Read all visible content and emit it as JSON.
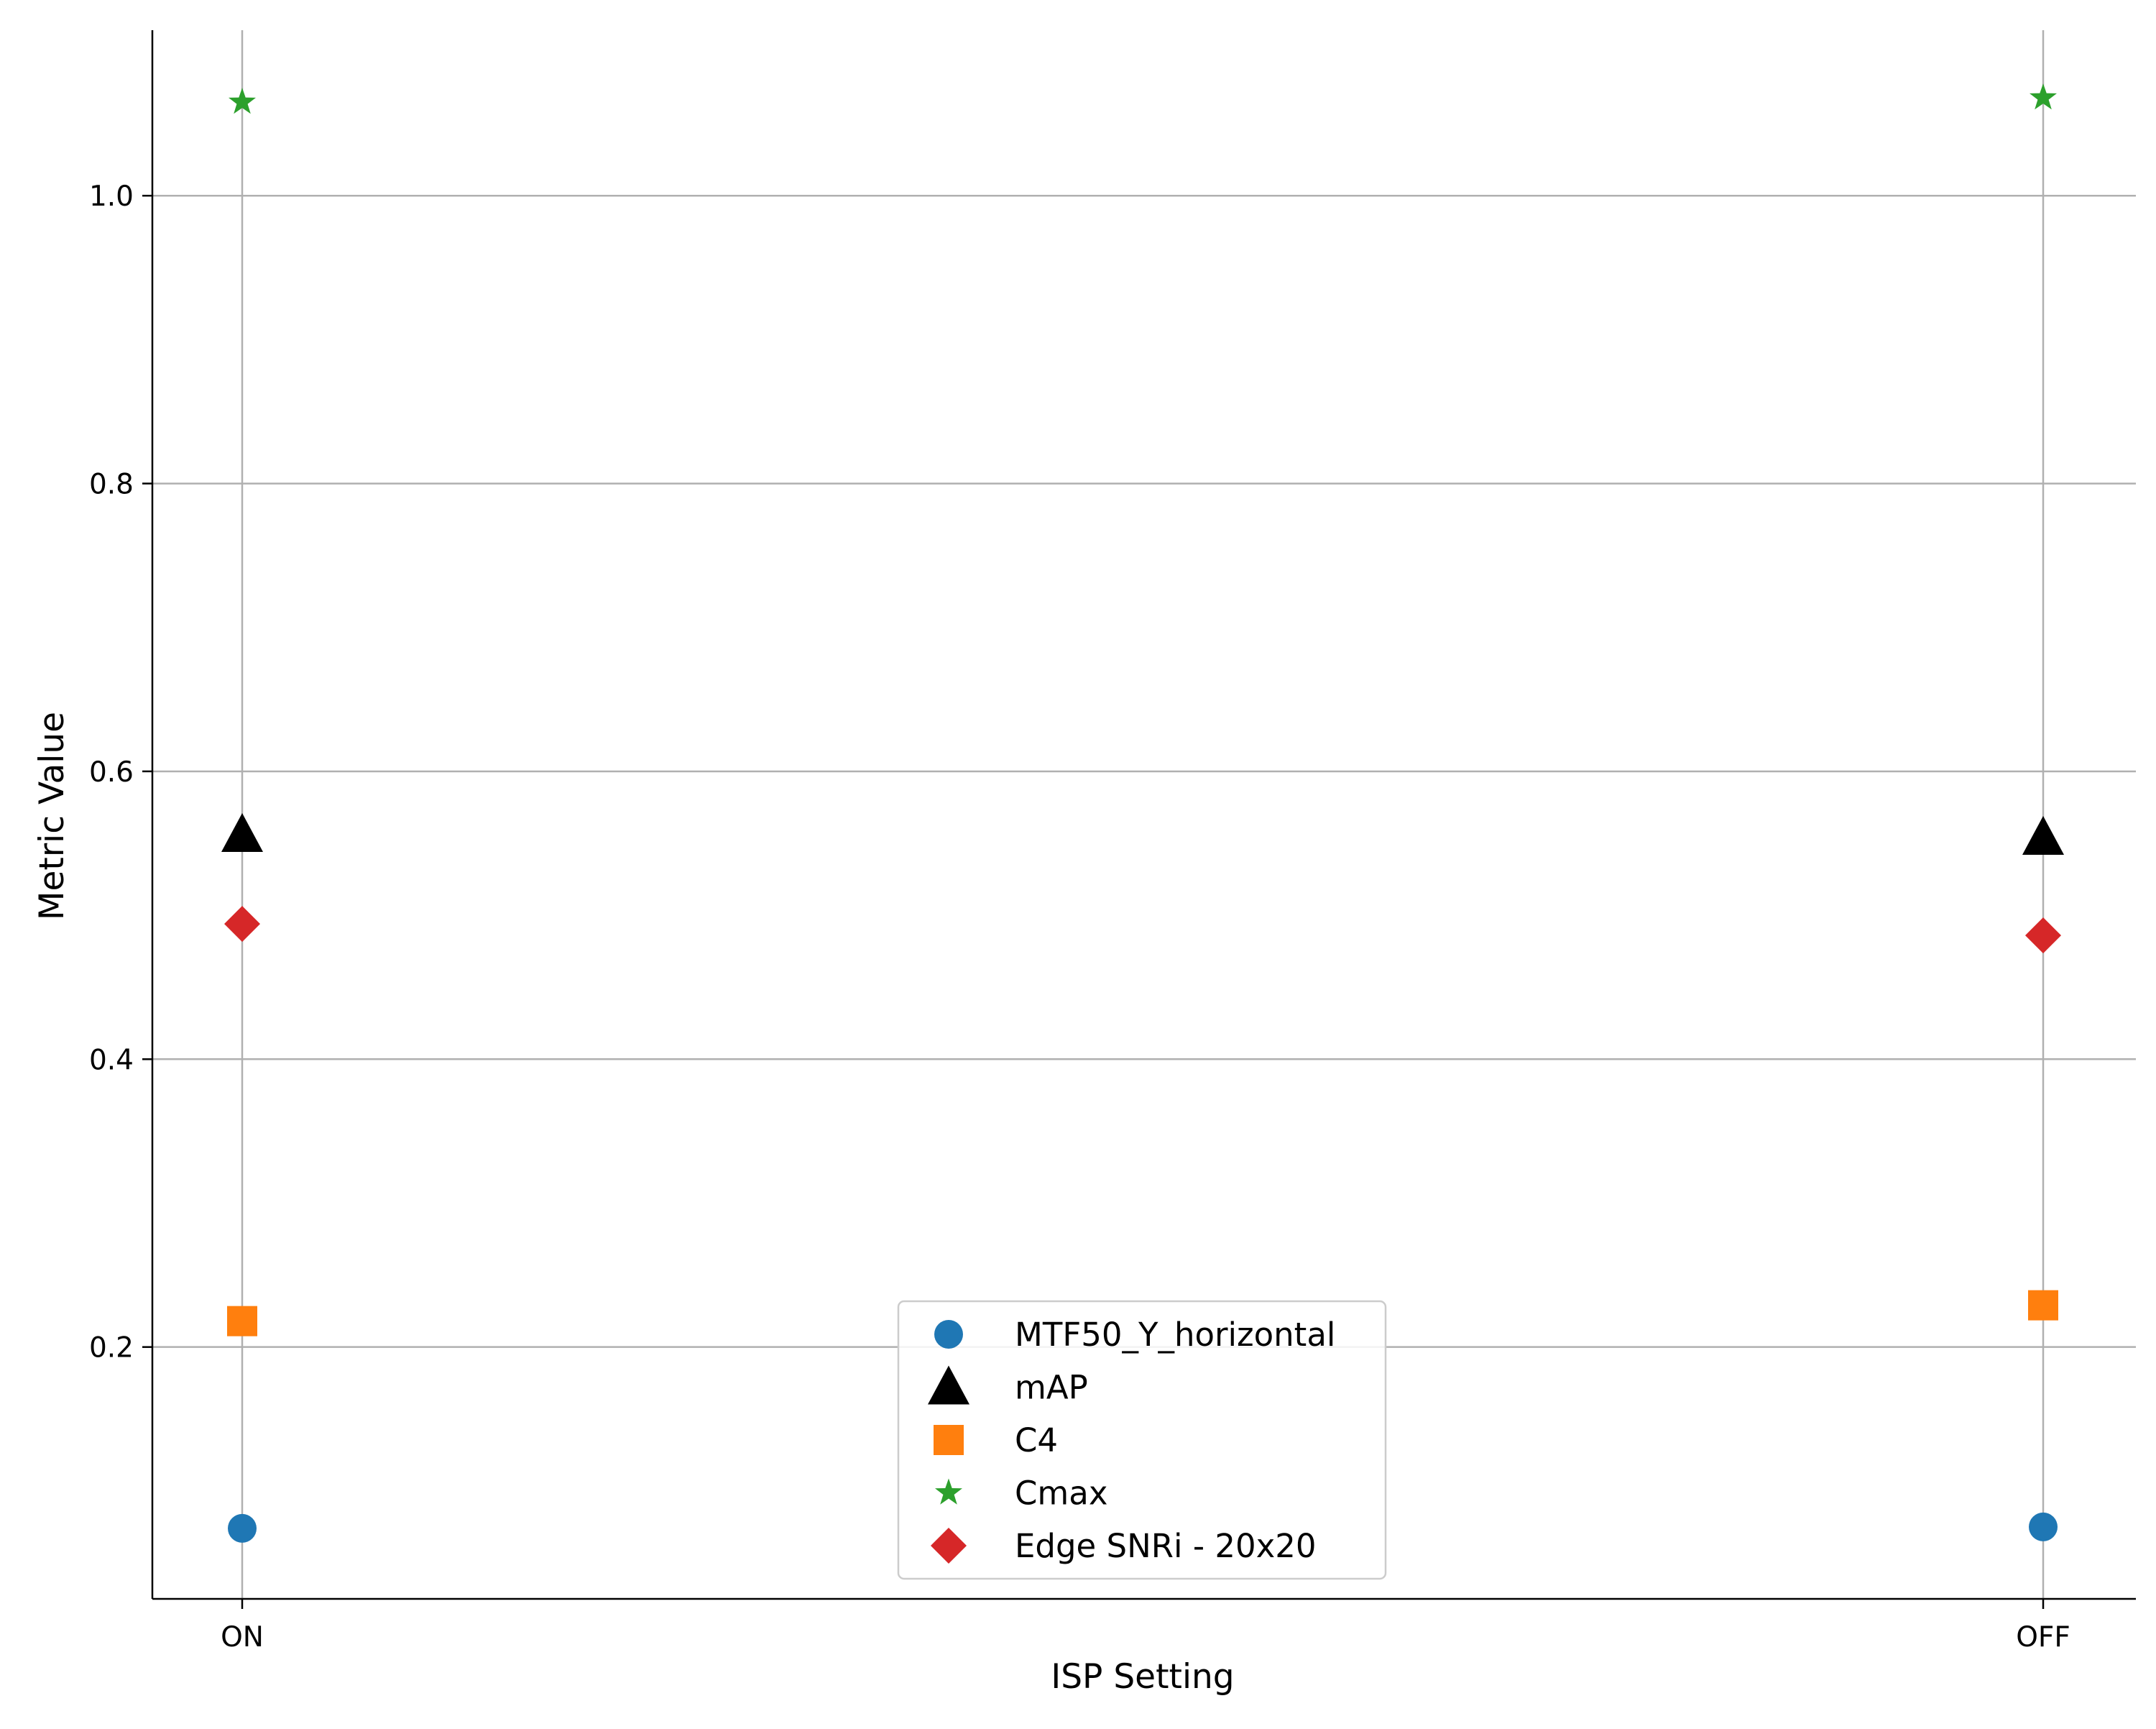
{
  "chart_data": {
    "type": "scatter",
    "title": "",
    "xlabel": "ISP Setting",
    "ylabel": "Metric Value",
    "categories": [
      "ON",
      "OFF"
    ],
    "ylim": [
      0.025,
      1.115
    ],
    "yticks": [
      "0.2",
      "0.4",
      "0.6",
      "0.8",
      "1.0"
    ],
    "grid": true,
    "legend_position": "lower center",
    "series": [
      {
        "name": "MTF50_Y_horizontal",
        "marker": "circle",
        "color": "#1f77b4",
        "values": [
          0.074,
          0.075
        ]
      },
      {
        "name": "mAP",
        "marker": "triangle",
        "color": "#000000",
        "values": [
          0.556,
          0.554
        ]
      },
      {
        "name": "C4",
        "marker": "square",
        "color": "#ff7f0e",
        "values": [
          0.218,
          0.229
        ]
      },
      {
        "name": "Cmax",
        "marker": "star",
        "color": "#2ca02c",
        "values": [
          1.065,
          1.068
        ]
      },
      {
        "name": "Edge SNRi - 20x20",
        "marker": "diamond",
        "color": "#d62728",
        "values": [
          0.494,
          0.486
        ]
      }
    ]
  }
}
